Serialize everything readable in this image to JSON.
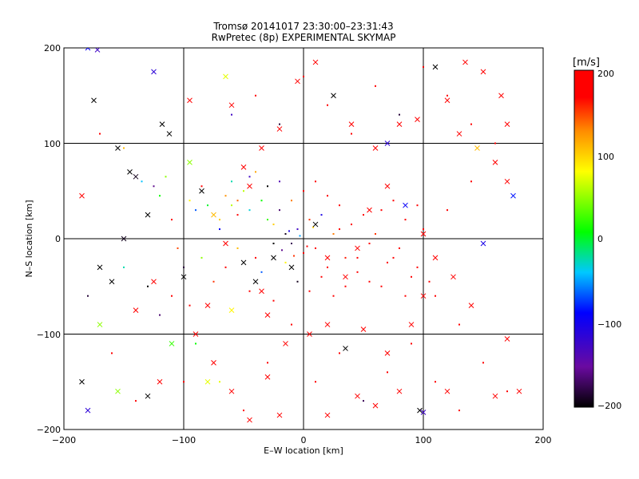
{
  "chart_data": {
    "type": "scatter",
    "title_line1": "Tromsø 20141017 23:30:00–23:31:43",
    "title_line2": "RwPretec (8p) EXPERIMENTAL SKYMAP",
    "xlabel": "E–W location [km]",
    "ylabel": "N–S location [km]",
    "xlim": [
      -200,
      200
    ],
    "ylim": [
      -200,
      200
    ],
    "xticks": [
      -200,
      -100,
      0,
      100,
      200
    ],
    "yticks": [
      -200,
      -100,
      0,
      100,
      200
    ],
    "xtick_labels": [
      "−200",
      "−100",
      "0",
      "100",
      "200"
    ],
    "ytick_labels": [
      "−200",
      "−100",
      "0",
      "100",
      "200"
    ],
    "grid": true,
    "colorbar": {
      "unit": "[m/s]",
      "range": [
        -200,
        200
      ],
      "ticks": [
        200,
        100,
        0,
        -100,
        -200
      ],
      "tick_labels": [
        "200",
        "100",
        "0",
        "−100",
        "−200"
      ],
      "colors": [
        "#000000",
        "#6a0aa0",
        "#0000ff",
        "#00c8ff",
        "#00ff00",
        "#ffff00",
        "#ff8c00",
        "#ff0000"
      ]
    },
    "series": [
      {
        "marker": "dot",
        "points": [
          [
            -170,
            110,
            200
          ],
          [
            -150,
            95,
            120
          ],
          [
            -135,
            60,
            -30
          ],
          [
            -125,
            55,
            -150
          ],
          [
            -120,
            45,
            30
          ],
          [
            -115,
            65,
            60
          ],
          [
            -110,
            20,
            200
          ],
          [
            -105,
            -10,
            170
          ],
          [
            -100,
            -30,
            -180
          ],
          [
            -95,
            40,
            90
          ],
          [
            -90,
            30,
            -60
          ],
          [
            -85,
            55,
            200
          ],
          [
            -80,
            35,
            20
          ],
          [
            -75,
            -45,
            180
          ],
          [
            -70,
            10,
            -90
          ],
          [
            -65,
            45,
            140
          ],
          [
            -60,
            60,
            -10
          ],
          [
            -55,
            25,
            200
          ],
          [
            -50,
            50,
            70
          ],
          [
            -45,
            65,
            -120
          ],
          [
            -40,
            -20,
            200
          ],
          [
            -35,
            40,
            30
          ],
          [
            -30,
            55,
            -200
          ],
          [
            -25,
            15,
            110
          ],
          [
            -20,
            30,
            -160
          ],
          [
            -15,
            5,
            -190
          ],
          [
            -10,
            -5,
            -170
          ],
          [
            -5,
            10,
            -120
          ],
          [
            0,
            -15,
            200
          ],
          [
            5,
            20,
            180
          ],
          [
            10,
            -10,
            200
          ],
          [
            15,
            25,
            -100
          ],
          [
            20,
            -30,
            200
          ],
          [
            25,
            5,
            150
          ],
          [
            30,
            35,
            200
          ],
          [
            35,
            -20,
            190
          ],
          [
            40,
            15,
            200
          ],
          [
            45,
            -35,
            200
          ],
          [
            50,
            25,
            200
          ],
          [
            55,
            -45,
            200
          ],
          [
            60,
            5,
            180
          ],
          [
            65,
            30,
            200
          ],
          [
            70,
            -25,
            200
          ],
          [
            75,
            40,
            200
          ],
          [
            80,
            -10,
            200
          ],
          [
            85,
            20,
            200
          ],
          [
            90,
            -40,
            200
          ],
          [
            95,
            35,
            200
          ],
          [
            100,
            10,
            200
          ],
          [
            110,
            -60,
            200
          ],
          [
            120,
            30,
            200
          ],
          [
            130,
            -90,
            200
          ],
          [
            140,
            60,
            200
          ],
          [
            150,
            -130,
            200
          ],
          [
            160,
            100,
            200
          ],
          [
            170,
            -160,
            200
          ],
          [
            -180,
            -60,
            -180
          ],
          [
            -160,
            -120,
            200
          ],
          [
            -140,
            -170,
            200
          ],
          [
            -120,
            -80,
            -160
          ],
          [
            -100,
            -150,
            200
          ],
          [
            -90,
            -110,
            30
          ],
          [
            -70,
            -150,
            80
          ],
          [
            -50,
            -180,
            200
          ],
          [
            -30,
            -130,
            200
          ],
          [
            -10,
            -90,
            200
          ],
          [
            10,
            -150,
            200
          ],
          [
            30,
            -120,
            200
          ],
          [
            50,
            -170,
            -170
          ],
          [
            70,
            -140,
            200
          ],
          [
            90,
            -110,
            200
          ],
          [
            110,
            -150,
            200
          ],
          [
            130,
            -180,
            200
          ],
          [
            -60,
            130,
            -120
          ],
          [
            -40,
            150,
            200
          ],
          [
            -20,
            120,
            -180
          ],
          [
            0,
            170,
            200
          ],
          [
            20,
            140,
            200
          ],
          [
            40,
            110,
            200
          ],
          [
            60,
            160,
            200
          ],
          [
            80,
            130,
            -180
          ],
          [
            100,
            180,
            200
          ],
          [
            120,
            150,
            200
          ],
          [
            140,
            120,
            200
          ],
          [
            -150,
            -30,
            -10
          ],
          [
            -130,
            -50,
            -200
          ],
          [
            -110,
            -60,
            200
          ],
          [
            -95,
            -70,
            200
          ],
          [
            -85,
            -20,
            60
          ],
          [
            -65,
            -30,
            200
          ],
          [
            -55,
            -10,
            120
          ],
          [
            -45,
            -55,
            200
          ],
          [
            -35,
            -35,
            -60
          ],
          [
            -25,
            -65,
            200
          ],
          [
            -15,
            -25,
            90
          ],
          [
            -5,
            -45,
            -190
          ],
          [
            5,
            -55,
            200
          ],
          [
            15,
            -40,
            200
          ],
          [
            25,
            -60,
            200
          ],
          [
            35,
            -50,
            200
          ],
          [
            45,
            -20,
            200
          ],
          [
            55,
            -5,
            200
          ],
          [
            65,
            -50,
            200
          ],
          [
            75,
            -20,
            200
          ],
          [
            85,
            -60,
            200
          ],
          [
            95,
            -30,
            200
          ],
          [
            105,
            -45,
            200
          ],
          [
            -40,
            70,
            130
          ],
          [
            -30,
            20,
            40
          ],
          [
            -20,
            60,
            -130
          ],
          [
            -10,
            40,
            150
          ],
          [
            0,
            50,
            200
          ],
          [
            10,
            60,
            200
          ],
          [
            20,
            45,
            200
          ],
          [
            30,
            10,
            200
          ],
          [
            -25,
            -5,
            -200
          ],
          [
            -18,
            -12,
            -150
          ],
          [
            -12,
            8,
            -100
          ],
          [
            -8,
            -18,
            180
          ],
          [
            -3,
            3,
            -40
          ],
          [
            3,
            -8,
            200
          ],
          [
            8,
            12,
            110
          ],
          [
            -60,
            35,
            70
          ],
          [
            -70,
            20,
            110
          ],
          [
            -55,
            40,
            160
          ],
          [
            -45,
            30,
            -20
          ]
        ]
      },
      {
        "marker": "cross",
        "points": [
          [
            -180,
            200,
            -90
          ],
          [
            -175,
            145,
            -200
          ],
          [
            -172,
            198,
            -120
          ],
          [
            -125,
            175,
            -110
          ],
          [
            -95,
            145,
            200
          ],
          [
            -65,
            170,
            80
          ],
          [
            -60,
            140,
            200
          ],
          [
            -155,
            95,
            -200
          ],
          [
            -145,
            70,
            -200
          ],
          [
            -140,
            65,
            -190
          ],
          [
            -118,
            120,
            -200
          ],
          [
            -112,
            110,
            -200
          ],
          [
            -95,
            80,
            60
          ],
          [
            -185,
            45,
            200
          ],
          [
            -170,
            -30,
            -200
          ],
          [
            -160,
            -45,
            -200
          ],
          [
            -140,
            -75,
            200
          ],
          [
            -125,
            -45,
            200
          ],
          [
            -100,
            -40,
            -200
          ],
          [
            -90,
            -100,
            200
          ],
          [
            -80,
            -70,
            200
          ],
          [
            -75,
            -130,
            200
          ],
          [
            -120,
            -150,
            200
          ],
          [
            -130,
            -165,
            -200
          ],
          [
            -180,
            -180,
            -110
          ],
          [
            -185,
            -150,
            -200
          ],
          [
            -155,
            -160,
            60
          ],
          [
            -60,
            -160,
            200
          ],
          [
            -45,
            -190,
            200
          ],
          [
            -30,
            -145,
            200
          ],
          [
            20,
            -185,
            200
          ],
          [
            45,
            -165,
            200
          ],
          [
            60,
            -175,
            200
          ],
          [
            80,
            -160,
            200
          ],
          [
            97,
            -180,
            -200
          ],
          [
            100,
            -182,
            -120
          ],
          [
            120,
            -160,
            200
          ],
          [
            160,
            -165,
            200
          ],
          [
            180,
            -160,
            200
          ],
          [
            170,
            -105,
            200
          ],
          [
            140,
            -70,
            200
          ],
          [
            125,
            -40,
            200
          ],
          [
            150,
            -5,
            -100
          ],
          [
            175,
            45,
            -80
          ],
          [
            170,
            60,
            200
          ],
          [
            160,
            80,
            200
          ],
          [
            145,
            95,
            120
          ],
          [
            130,
            110,
            200
          ],
          [
            120,
            145,
            200
          ],
          [
            110,
            180,
            -200
          ],
          [
            135,
            185,
            200
          ],
          [
            150,
            175,
            200
          ],
          [
            165,
            150,
            200
          ],
          [
            170,
            120,
            200
          ],
          [
            95,
            125,
            200
          ],
          [
            80,
            120,
            200
          ],
          [
            70,
            100,
            -110
          ],
          [
            60,
            95,
            200
          ],
          [
            40,
            120,
            200
          ],
          [
            25,
            150,
            -200
          ],
          [
            10,
            185,
            200
          ],
          [
            -5,
            165,
            200
          ],
          [
            -20,
            115,
            200
          ],
          [
            -35,
            95,
            200
          ],
          [
            -50,
            75,
            200
          ],
          [
            -45,
            55,
            200
          ],
          [
            -35,
            -55,
            200
          ],
          [
            -30,
            -80,
            200
          ],
          [
            -15,
            -110,
            200
          ],
          [
            5,
            -100,
            200
          ],
          [
            20,
            -90,
            200
          ],
          [
            35,
            -115,
            -200
          ],
          [
            50,
            -95,
            200
          ],
          [
            70,
            -120,
            200
          ],
          [
            90,
            -90,
            200
          ],
          [
            100,
            -60,
            200
          ],
          [
            110,
            -20,
            200
          ],
          [
            100,
            5,
            200
          ],
          [
            85,
            35,
            -90
          ],
          [
            70,
            55,
            200
          ],
          [
            55,
            30,
            200
          ],
          [
            45,
            -10,
            200
          ],
          [
            35,
            -40,
            200
          ],
          [
            20,
            -20,
            200
          ],
          [
            10,
            15,
            -200
          ],
          [
            -10,
            -30,
            -200
          ],
          [
            -25,
            -20,
            -200
          ],
          [
            -40,
            -45,
            -200
          ],
          [
            -50,
            -25,
            -200
          ],
          [
            -65,
            -5,
            200
          ],
          [
            -75,
            25,
            120
          ],
          [
            -85,
            50,
            -200
          ],
          [
            -60,
            -75,
            90
          ],
          [
            -110,
            -110,
            40
          ],
          [
            -130,
            25,
            -200
          ],
          [
            -150,
            0,
            -190
          ],
          [
            -170,
            -90,
            60
          ],
          [
            -80,
            -150,
            80
          ],
          [
            -20,
            -185,
            200
          ]
        ]
      }
    ]
  }
}
